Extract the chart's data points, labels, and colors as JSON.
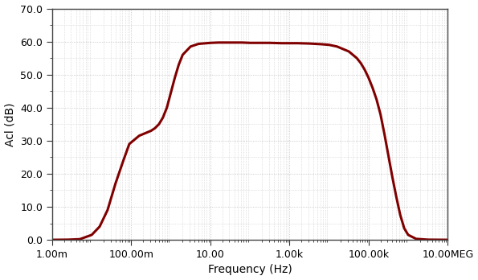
{
  "title": "",
  "xlabel": "Frequency (Hz)",
  "ylabel": "Acl (dB)",
  "xlim_log": [
    -3,
    7
  ],
  "ylim": [
    0.0,
    70.0
  ],
  "yticks": [
    0.0,
    10.0,
    20.0,
    30.0,
    40.0,
    50.0,
    60.0,
    70.0
  ],
  "xtick_positions": [
    0.001,
    0.1,
    10,
    1000,
    100000,
    10000000
  ],
  "xtick_labels": [
    "1.00m",
    "100.00m",
    "10.00",
    "1.00k",
    "100.00k",
    "10.00MEG"
  ],
  "line_color": "#800000",
  "line_width": 2.2,
  "background_color": "#ffffff",
  "grid_color": "#bbbbbb",
  "curve_points_log_x": [
    -3.0,
    -2.6,
    -2.3,
    -2.0,
    -1.8,
    -1.6,
    -1.4,
    -1.2,
    -1.05,
    -1.0,
    -0.9,
    -0.8,
    -0.7,
    -0.6,
    -0.5,
    -0.4,
    -0.3,
    -0.2,
    -0.1,
    0.0,
    0.1,
    0.2,
    0.3,
    0.5,
    0.7,
    0.9,
    1.0,
    1.2,
    1.5,
    1.8,
    2.0,
    2.2,
    2.5,
    2.8,
    3.0,
    3.2,
    3.5,
    3.8,
    4.0,
    4.2,
    4.5,
    4.7,
    4.8,
    4.9,
    5.0,
    5.1,
    5.2,
    5.3,
    5.4,
    5.5,
    5.6,
    5.7,
    5.8,
    5.9,
    6.0,
    6.2,
    6.5,
    7.0
  ],
  "curve_points_y": [
    0.0,
    0.05,
    0.2,
    1.5,
    4.0,
    9.0,
    17.0,
    24.0,
    29.0,
    29.5,
    30.5,
    31.5,
    32.0,
    32.5,
    33.0,
    33.8,
    35.0,
    37.0,
    40.0,
    44.5,
    49.0,
    53.0,
    56.0,
    58.5,
    59.3,
    59.5,
    59.6,
    59.7,
    59.7,
    59.7,
    59.6,
    59.6,
    59.6,
    59.5,
    59.5,
    59.5,
    59.4,
    59.2,
    59.0,
    58.5,
    57.0,
    55.0,
    53.5,
    51.5,
    49.0,
    46.0,
    42.5,
    38.0,
    32.0,
    25.5,
    19.0,
    13.0,
    7.5,
    3.5,
    1.5,
    0.3,
    0.05,
    0.0
  ]
}
